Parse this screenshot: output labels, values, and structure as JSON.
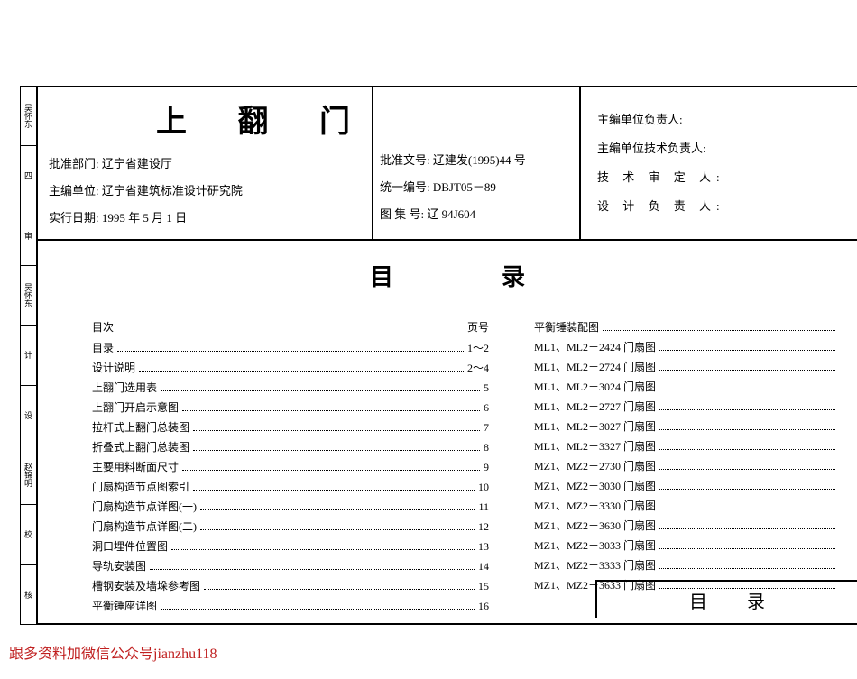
{
  "title": "上 翻 门",
  "header": {
    "left": {
      "approve_dept_label": "批准部门:",
      "approve_dept": "辽宁省建设厅",
      "editor_unit_label": "主编单位:",
      "editor_unit": "辽宁省建筑标准设计研究院",
      "effective_date_label": "实行日期:",
      "effective_date": "1995 年 5 月 1 日"
    },
    "mid": {
      "approve_doc_label": "批准文号:",
      "approve_doc": "辽建发(1995)44 号",
      "unified_no_label": "统一编号:",
      "unified_no": "DBJT05－89",
      "atlas_no_label": "图 集 号:",
      "atlas_no": "辽 94J604"
    },
    "right": {
      "r1": "主编单位负责人:",
      "r2": "主编单位技术负责人:",
      "r3": "技 术 审 定 人:",
      "r4": "设 计 负 责 人:"
    }
  },
  "toc_title": "目录",
  "toc_head": {
    "label": "目次",
    "page": "页号"
  },
  "left_items": [
    {
      "label": "目录",
      "page": "1～2"
    },
    {
      "label": "设计说明",
      "page": "2～4"
    },
    {
      "label": "上翻门选用表",
      "page": "5"
    },
    {
      "label": "上翻门开启示意图",
      "page": "6"
    },
    {
      "label": "拉杆式上翻门总装图",
      "page": "7"
    },
    {
      "label": "折叠式上翻门总装图",
      "page": "8"
    },
    {
      "label": "主要用料断面尺寸",
      "page": "9"
    },
    {
      "label": "门扇构造节点图索引",
      "page": "10"
    },
    {
      "label": "门扇构造节点详图(一)",
      "page": "11"
    },
    {
      "label": "门扇构造节点详图(二)",
      "page": "12"
    },
    {
      "label": "洞口埋件位置图",
      "page": "13"
    },
    {
      "label": "导轨安装图",
      "page": "14"
    },
    {
      "label": "槽钢安装及墙垛参考图",
      "page": "15"
    },
    {
      "label": "平衡锤座详图",
      "page": "16"
    }
  ],
  "right_items": [
    {
      "label": "平衡锤装配图",
      "page": ""
    },
    {
      "label": "ML1、ML2－2424 门扇图",
      "page": ""
    },
    {
      "label": "ML1、ML2－2724 门扇图",
      "page": ""
    },
    {
      "label": "ML1、ML2－3024 门扇图",
      "page": ""
    },
    {
      "label": "ML1、ML2－2727 门扇图",
      "page": ""
    },
    {
      "label": "ML1、ML2－3027 门扇图",
      "page": ""
    },
    {
      "label": "ML1、ML2－3327 门扇图",
      "page": ""
    },
    {
      "label": "MZ1、MZ2－2730 门扇图",
      "page": ""
    },
    {
      "label": "MZ1、MZ2－3030 门扇图",
      "page": ""
    },
    {
      "label": "MZ1、MZ2－3330 门扇图",
      "page": ""
    },
    {
      "label": "MZ1、MZ2－3630 门扇图",
      "page": ""
    },
    {
      "label": "MZ1、MZ2－3033 门扇图",
      "page": ""
    },
    {
      "label": "MZ1、MZ2－3333 门扇图",
      "page": ""
    },
    {
      "label": "MZ1、MZ2－3633 门扇图",
      "page": ""
    }
  ],
  "bottom_box": "目录",
  "side_tabs": [
    "吴怀东",
    "四",
    "审",
    "吴怀东",
    "计",
    "设",
    "赵锦明",
    "校",
    "核"
  ],
  "watermark": "跟多资料加微信公众号jianzhu118"
}
